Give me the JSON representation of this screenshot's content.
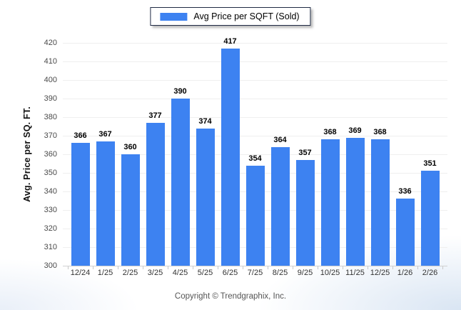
{
  "chart_data": {
    "type": "bar",
    "title": "",
    "legend": "Avg Price per SQFT (Sold)",
    "legend_position": "top-center",
    "xlabel": "",
    "ylabel": "Avg. Price per SQ. FT.",
    "categories": [
      "12/24",
      "1/25",
      "2/25",
      "3/25",
      "4/25",
      "5/25",
      "6/25",
      "7/25",
      "8/25",
      "9/25",
      "10/25",
      "11/25",
      "12/25",
      "1/26",
      "2/26"
    ],
    "values": [
      366,
      367,
      360,
      377,
      390,
      374,
      417,
      354,
      364,
      357,
      368,
      369,
      368,
      336,
      351
    ],
    "ylim": [
      300,
      420
    ],
    "ytick_step": 10,
    "grid": true,
    "value_labels": true,
    "bar_color": "#3d82f1"
  },
  "colors": {
    "bar": "#3d82f1",
    "gridline": "#efefef",
    "axis_line": "#d2d2d2",
    "legend_border": "#1f2a44"
  },
  "footer": {
    "copyright": "Copyright © Trendgraphix, Inc."
  }
}
